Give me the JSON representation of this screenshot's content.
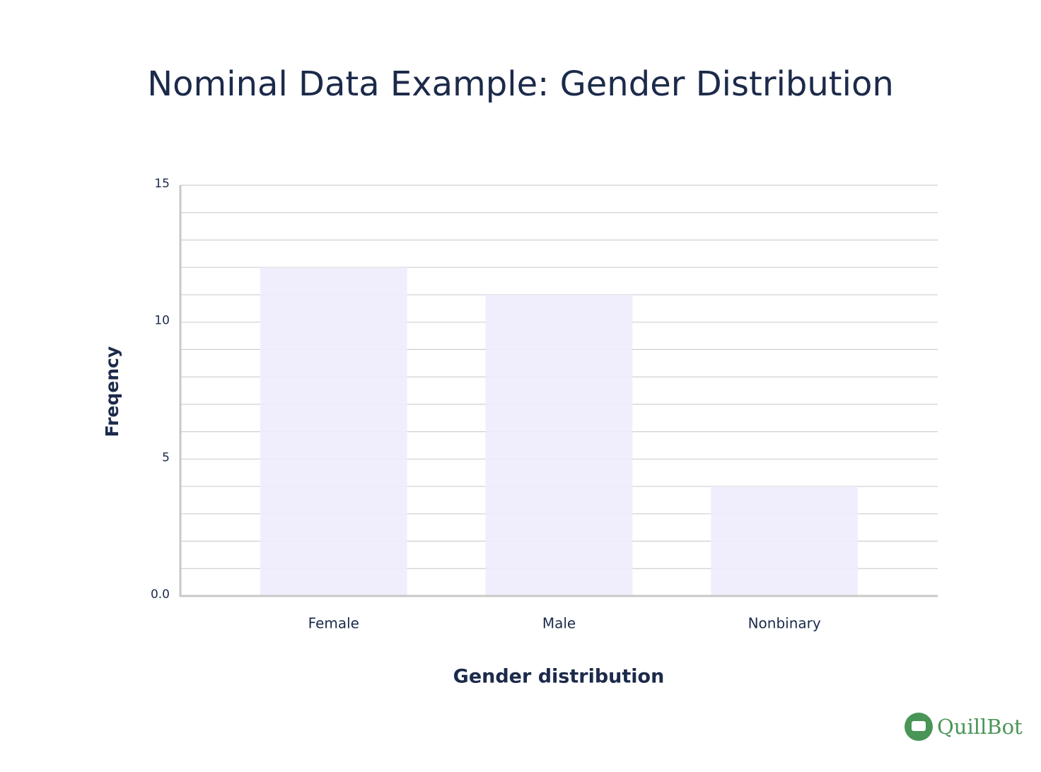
{
  "chart_data": {
    "type": "bar",
    "title": "Nominal Data Example: Gender Distribution",
    "x_label": "Gender distribution",
    "y_label": "Freqency",
    "categories": [
      "Female",
      "Male",
      "Nonbinary"
    ],
    "values": [
      12,
      11,
      4
    ],
    "color": "#eeecfc",
    "ylim": [
      0,
      15
    ],
    "yticks": [
      {
        "value": 0,
        "label": "0.0"
      },
      5,
      10,
      15
    ],
    "minor_yticks": [
      1,
      2,
      3,
      4,
      6,
      7,
      8,
      9,
      11,
      12,
      13,
      14
    ],
    "grid": true
  },
  "brand": "QuillBot"
}
